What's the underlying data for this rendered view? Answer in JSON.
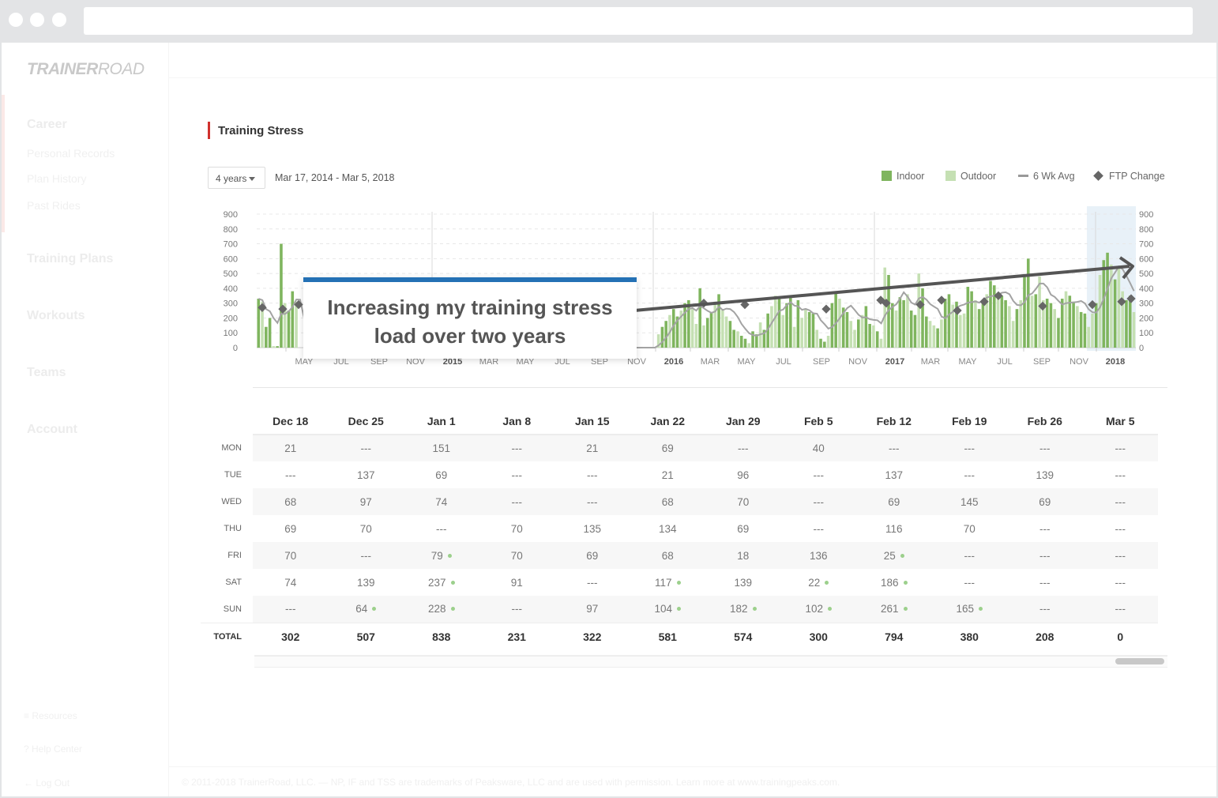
{
  "app": {
    "logo_bold": "TRAINER",
    "logo_light": "ROAD"
  },
  "sidebar": {
    "sections": [
      {
        "label": "Career",
        "items": [
          "Personal Records",
          "Plan History",
          "Past Rides"
        ]
      },
      {
        "label": "Training Plans",
        "items": []
      },
      {
        "label": "Workouts",
        "items": []
      },
      {
        "label": "Teams",
        "items": []
      },
      {
        "label": "Account",
        "items": []
      }
    ],
    "footer_links": [
      {
        "icon": "list-icon",
        "label": "Resources"
      },
      {
        "icon": "help-icon",
        "label": "Help Center"
      },
      {
        "icon": "logout-icon",
        "label": "Log Out"
      }
    ]
  },
  "page": {
    "title": "Training Stress"
  },
  "controls": {
    "range_label": "4 years",
    "date_range": "Mar 17, 2014 - Mar 5, 2018"
  },
  "legend": {
    "indoor": "Indoor",
    "outdoor": "Outdoor",
    "avg": "6 Wk Avg",
    "ftp": "FTP Change"
  },
  "callout": {
    "line1": "Increasing my training stress",
    "line2": "load over two years"
  },
  "chart_data": {
    "type": "bar",
    "y_ticks": [
      0,
      100,
      200,
      300,
      400,
      500,
      600,
      700,
      800,
      900
    ],
    "ylim": [
      0,
      900
    ],
    "x_tick_labels": [
      "MAY",
      "JUL",
      "SEP",
      "NOV",
      "2015",
      "MAR",
      "MAY",
      "JUL",
      "SEP",
      "NOV",
      "2016",
      "MAR",
      "MAY",
      "JUL",
      "SEP",
      "NOV",
      "2017",
      "MAR",
      "MAY",
      "JUL",
      "SEP",
      "NOV",
      "2018"
    ],
    "year_labels": [
      "2015",
      "2016",
      "2017",
      "2018"
    ],
    "series": [
      {
        "name": "Indoor",
        "color": "#7fb55e"
      },
      {
        "name": "Outdoor",
        "color": "#c5e0b3"
      },
      {
        "name": "6 Wk Avg",
        "color": "#a3a3a3"
      },
      {
        "name": "FTP Change",
        "color": "#666666"
      }
    ],
    "weekly_tss_estimate": [
      330,
      310,
      140,
      200,
      10,
      10,
      700,
      300,
      250,
      380,
      310,
      0,
      0,
      0,
      0,
      0,
      0,
      0,
      0,
      0,
      0,
      0,
      0,
      0,
      0,
      0,
      0,
      0,
      0,
      0,
      0,
      0,
      0,
      0,
      0,
      0,
      0,
      0,
      0,
      0,
      0,
      0,
      0,
      0,
      0,
      0,
      0,
      0,
      0,
      0,
      0,
      0,
      0,
      0,
      0,
      0,
      0,
      0,
      0,
      0,
      0,
      0,
      0,
      0,
      0,
      0,
      0,
      0,
      0,
      0,
      0,
      0,
      0,
      0,
      0,
      0,
      0,
      0,
      0,
      0,
      0,
      0,
      0,
      0,
      0,
      0,
      0,
      0,
      0,
      0,
      0,
      0,
      0,
      0,
      0,
      0,
      0,
      0,
      0,
      0,
      0,
      0,
      0,
      0,
      0,
      0,
      90,
      140,
      180,
      220,
      260,
      210,
      250,
      300,
      320,
      260,
      160,
      400,
      150,
      200,
      240,
      310,
      360,
      260,
      210,
      180,
      120,
      110,
      80,
      60,
      30,
      110,
      90,
      170,
      120,
      230,
      280,
      350,
      340,
      220,
      300,
      350,
      140,
      320,
      200,
      260,
      240,
      230,
      120,
      60,
      40,
      80,
      300,
      380,
      330,
      270,
      240,
      180,
      120,
      190,
      220,
      280,
      160,
      150,
      110,
      60,
      540,
      490,
      300,
      250,
      340,
      320,
      360,
      250,
      220,
      500,
      400,
      210,
      180,
      150,
      130,
      190,
      330,
      360,
      290,
      310,
      220,
      230,
      410,
      380,
      320,
      260,
      300,
      360,
      450,
      420,
      340,
      350,
      320,
      280,
      180,
      260,
      320,
      480,
      600,
      350,
      360,
      480,
      320,
      330,
      300,
      260,
      200,
      330,
      380,
      350,
      310,
      280,
      240,
      230,
      140,
      230,
      300,
      490,
      590,
      640,
      560,
      460,
      540,
      380,
      320,
      350,
      240
    ],
    "avg_line_estimate": [
      300,
      280,
      250,
      220,
      180,
      160,
      200,
      230,
      210,
      190,
      180
    ],
    "ftp_changes_estimate": [
      270,
      260,
      290,
      300,
      290,
      260,
      320,
      300,
      290,
      320,
      250,
      280,
      290,
      310,
      330,
      310,
      350
    ]
  },
  "weekly_table": {
    "columns": [
      "Dec 18",
      "Dec 25",
      "Jan 1",
      "Jan 8",
      "Jan 15",
      "Jan 22",
      "Jan 29",
      "Feb 5",
      "Feb 12",
      "Feb 19",
      "Feb 26",
      "Mar 5"
    ],
    "rows": [
      {
        "day": "MON",
        "values": [
          "21",
          "---",
          "151",
          "---",
          "21",
          "69",
          "---",
          "40",
          "---",
          "---",
          "---",
          "---"
        ],
        "outdoor": []
      },
      {
        "day": "TUE",
        "values": [
          "---",
          "137",
          "69",
          "---",
          "---",
          "21",
          "96",
          "---",
          "137",
          "---",
          "139",
          "---"
        ],
        "outdoor": []
      },
      {
        "day": "WED",
        "values": [
          "68",
          "97",
          "74",
          "---",
          "---",
          "68",
          "70",
          "---",
          "69",
          "145",
          "69",
          "---"
        ],
        "outdoor": []
      },
      {
        "day": "THU",
        "values": [
          "69",
          "70",
          "---",
          "70",
          "135",
          "134",
          "69",
          "---",
          "116",
          "70",
          "---",
          "---"
        ],
        "outdoor": []
      },
      {
        "day": "FRI",
        "values": [
          "70",
          "---",
          "79",
          "70",
          "69",
          "68",
          "18",
          "136",
          "25",
          "---",
          "---",
          "---"
        ],
        "outdoor": [
          2,
          8
        ]
      },
      {
        "day": "SAT",
        "values": [
          "74",
          "139",
          "237",
          "91",
          "---",
          "117",
          "139",
          "22",
          "186",
          "---",
          "---",
          "---"
        ],
        "outdoor": [
          2,
          5,
          7,
          8
        ]
      },
      {
        "day": "SUN",
        "values": [
          "---",
          "64",
          "228",
          "---",
          "97",
          "104",
          "182",
          "102",
          "261",
          "165",
          "---",
          "---"
        ],
        "outdoor": [
          1,
          2,
          5,
          6,
          7,
          8,
          9
        ]
      }
    ],
    "total_label": "TOTAL",
    "totals": [
      "302",
      "507",
      "838",
      "231",
      "322",
      "581",
      "574",
      "300",
      "794",
      "380",
      "208",
      "0"
    ]
  },
  "footer": {
    "text": "© 2011-2018 TrainerRoad, LLC. — NP, IF and TSS are trademarks of Peaksware, LLC and are used with permission. Learn more at www.trainingpeaks.com."
  }
}
